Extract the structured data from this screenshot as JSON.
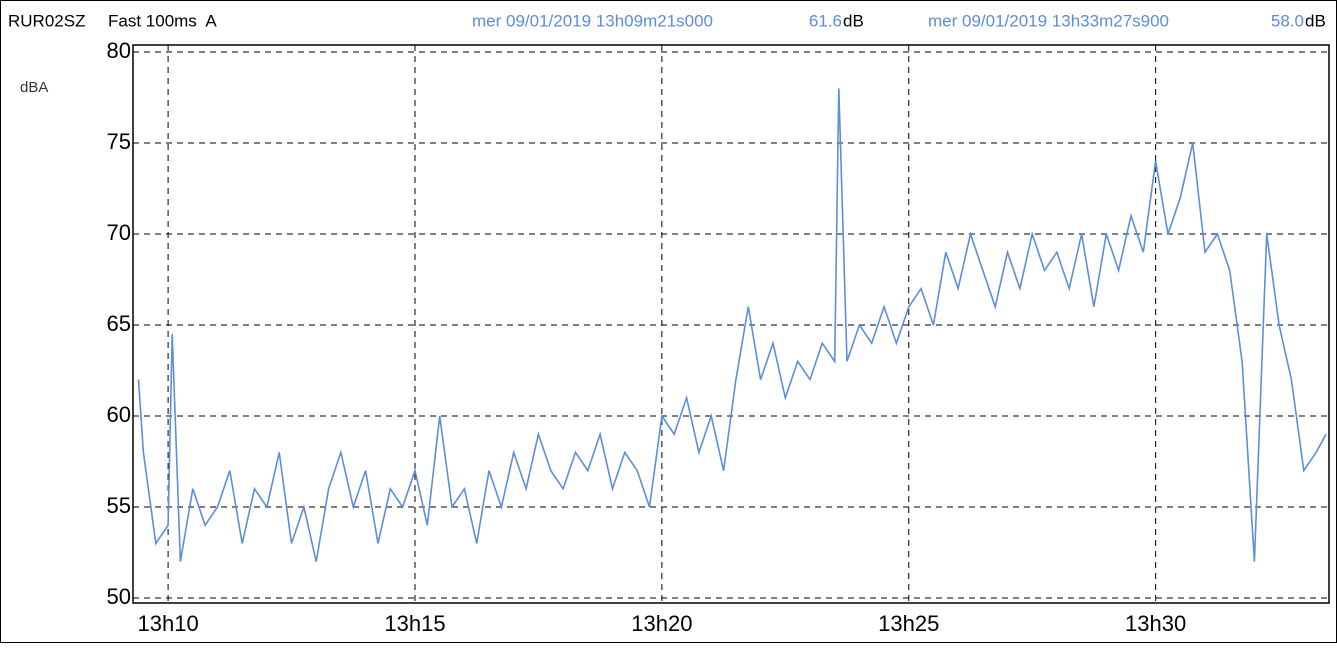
{
  "chart_data": {
    "type": "line",
    "header": {
      "channel": "RUR02SZ",
      "setting": "Fast 100ms  A"
    },
    "cursors": [
      {
        "time": "mer 09/01/2019 13h09m21s000",
        "value": "61.6",
        "unit": "dB"
      },
      {
        "time": "mer 09/01/2019 13h33m27s900",
        "value": "58.0",
        "unit": "dB"
      }
    ],
    "y_label": "dBA",
    "x": [
      "13h09m24s",
      "13h09m30s",
      "13h09m45s",
      "13h10m00s",
      "13h10m05s",
      "13h10m15s",
      "13h10m30s",
      "13h10m45s",
      "13h11m00s",
      "13h11m15s",
      "13h11m30s",
      "13h11m45s",
      "13h12m00s",
      "13h12m15s",
      "13h12m30s",
      "13h12m45s",
      "13h13m00s",
      "13h13m15s",
      "13h13m30s",
      "13h13m45s",
      "13h14m00s",
      "13h14m15s",
      "13h14m30s",
      "13h14m45s",
      "13h15m00s",
      "13h15m15s",
      "13h15m30s",
      "13h15m45s",
      "13h16m00s",
      "13h16m15s",
      "13h16m30s",
      "13h16m45s",
      "13h17m00s",
      "13h17m15s",
      "13h17m30s",
      "13h17m45s",
      "13h18m00s",
      "13h18m15s",
      "13h18m30s",
      "13h18m45s",
      "13h19m00s",
      "13h19m15s",
      "13h19m30s",
      "13h19m45s",
      "13h20m00s",
      "13h20m15s",
      "13h20m30s",
      "13h20m45s",
      "13h21m00s",
      "13h21m15s",
      "13h21m30s",
      "13h21m45s",
      "13h22m00s",
      "13h22m15s",
      "13h22m30s",
      "13h22m45s",
      "13h23m00s",
      "13h23m15s",
      "13h23m30s",
      "13h23m35s",
      "13h23m45s",
      "13h24m00s",
      "13h24m15s",
      "13h24m30s",
      "13h24m45s",
      "13h25m00s",
      "13h25m15s",
      "13h25m30s",
      "13h25m45s",
      "13h26m00s",
      "13h26m15s",
      "13h26m30s",
      "13h26m45s",
      "13h27m00s",
      "13h27m15s",
      "13h27m30s",
      "13h27m45s",
      "13h28m00s",
      "13h28m15s",
      "13h28m30s",
      "13h28m45s",
      "13h29m00s",
      "13h29m15s",
      "13h29m30s",
      "13h29m45s",
      "13h30m00s",
      "13h30m15s",
      "13h30m30s",
      "13h30m45s",
      "13h31m00s",
      "13h31m15s",
      "13h31m30s",
      "13h31m45s",
      "13h32m00s",
      "13h32m15s",
      "13h32m30s",
      "13h32m45s",
      "13h33m00s",
      "13h33m15s",
      "13h33m27s"
    ],
    "series": [
      {
        "name": "RUR02SZ",
        "color": "#5b8fdc",
        "values": [
          62,
          58,
          53,
          54,
          64.5,
          52,
          56,
          54,
          55,
          57,
          53,
          56,
          55,
          58,
          53,
          55,
          52,
          56,
          58,
          55,
          57,
          53,
          56,
          55,
          57,
          54,
          60,
          55,
          56,
          53,
          57,
          55,
          58,
          56,
          59,
          57,
          56,
          58,
          57,
          59,
          56,
          58,
          57,
          55,
          60,
          59,
          61,
          58,
          60,
          57,
          62,
          66,
          62,
          64,
          61,
          63,
          62,
          64,
          63,
          78,
          63,
          65,
          64,
          66,
          64,
          66,
          67,
          65,
          69,
          67,
          70,
          68,
          66,
          69,
          67,
          70,
          68,
          69,
          67,
          70,
          66,
          70,
          68,
          71,
          69,
          74,
          70,
          72,
          75,
          69,
          70,
          68,
          63,
          52,
          70,
          65,
          62,
          57,
          58,
          59
        ]
      }
    ],
    "xlim": [
      "13h09m21s",
      "13h33m27s"
    ],
    "xticks": [
      "13h10",
      "13h15",
      "13h20",
      "13h25",
      "13h30"
    ],
    "ylim": [
      50,
      80
    ],
    "yticks": [
      50,
      55,
      60,
      65,
      70,
      75,
      80
    ],
    "grid": true
  }
}
